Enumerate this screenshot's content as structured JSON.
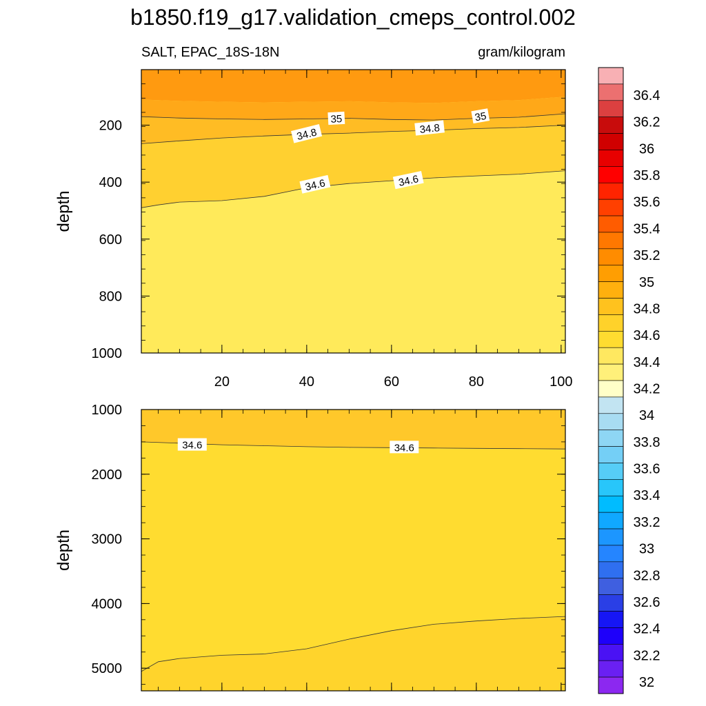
{
  "title": "b1850.f19_g17.validation_cmeps_control.002",
  "chart_data": {
    "type": "contour",
    "title": "b1850.f19_g17.validation_cmeps_control.002",
    "variable_label": "SALT, EPAC_18S-18N",
    "units_label": "gram/kilogram",
    "x_ticks": [
      20,
      40,
      60,
      80,
      100
    ],
    "xlim": [
      1,
      101
    ],
    "panels": [
      {
        "name": "upper",
        "ylabel": "depth",
        "ylim": [
          1000,
          5
        ],
        "y_ticks": [
          200,
          400,
          600,
          800,
          1000
        ],
        "fill_levels": [
          {
            "y": [
              5,
              120
            ],
            "value": 35.1
          },
          {
            "y": [
              120,
              200
            ],
            "value": 34.95
          },
          {
            "y": [
              200,
              300
            ],
            "value": 34.75
          },
          {
            "y": [
              300,
              400
            ],
            "value": 34.65
          },
          {
            "y": [
              400,
              1000
            ],
            "value": 34.5
          }
        ],
        "contours": [
          {
            "level": 35.0,
            "x": [
              1,
              10,
              20,
              30,
              40,
              50,
              60,
              70,
              80,
              90,
              101
            ],
            "y": [
              170,
              175,
              178,
              180,
              178,
              176,
              180,
              182,
              176,
              172,
              160
            ]
          },
          {
            "level": 34.8,
            "x": [
              1,
              10,
              20,
              30,
              40,
              50,
              60,
              70,
              80,
              90,
              101
            ],
            "y": [
              265,
              255,
              245,
              238,
              232,
              228,
              222,
              218,
              212,
              208,
              200
            ]
          },
          {
            "level": 34.6,
            "x": [
              1,
              5,
              10,
              20,
              30,
              40,
              50,
              60,
              70,
              80,
              90,
              101
            ],
            "y": [
              490,
              480,
              470,
              465,
              450,
              420,
              405,
              395,
              385,
              378,
              372,
              360
            ]
          }
        ],
        "contour_labels": [
          {
            "text": "35",
            "x": 47,
            "y": 178,
            "angle": -3
          },
          {
            "text": "35",
            "x": 81,
            "y": 170,
            "angle": -10
          },
          {
            "text": "34.8",
            "x": 40,
            "y": 232,
            "angle": -14
          },
          {
            "text": "34.8",
            "x": 69,
            "y": 212,
            "angle": -6
          },
          {
            "text": "34.6",
            "x": 42,
            "y": 410,
            "angle": -13
          },
          {
            "text": "34.6",
            "x": 64,
            "y": 395,
            "angle": -12
          }
        ]
      },
      {
        "name": "lower",
        "ylabel": "depth",
        "ylim": [
          5350,
          1000
        ],
        "y_ticks": [
          1000,
          2000,
          3000,
          4000,
          5000
        ],
        "fill_levels": [
          {
            "y": [
              1000,
              1550
            ],
            "value": 34.5
          },
          {
            "y": [
              1550,
              4250
            ],
            "value": 34.65
          },
          {
            "y": [
              4250,
              5350
            ],
            "value": 34.7
          }
        ],
        "contours": [
          {
            "level": 34.6,
            "x": [
              1,
              10,
              20,
              30,
              40,
              50,
              60,
              70,
              80,
              90,
              101
            ],
            "y": [
              1500,
              1520,
              1545,
              1560,
              1575,
              1585,
              1590,
              1595,
              1600,
              1605,
              1610
            ]
          },
          {
            "level": 34.7,
            "x": [
              1,
              5,
              10,
              20,
              30,
              40,
              50,
              60,
              70,
              80,
              90,
              101
            ],
            "y": [
              5050,
              4900,
              4850,
              4800,
              4780,
              4700,
              4550,
              4420,
              4320,
              4270,
              4230,
              4200
            ]
          }
        ],
        "contour_labels": [
          {
            "text": "34.6",
            "x": 13,
            "y": 1550,
            "angle": 0
          },
          {
            "text": "34.6",
            "x": 63,
            "y": 1590,
            "angle": 0
          }
        ]
      }
    ],
    "colorbar": {
      "labels": [
        "32",
        "32.2",
        "32.4",
        "32.6",
        "32.8",
        "33",
        "33.2",
        "33.4",
        "33.6",
        "33.8",
        "34",
        "34.2",
        "34.4",
        "34.6",
        "34.8",
        "35",
        "35.2",
        "35.4",
        "35.6",
        "35.8",
        "36",
        "36.2",
        "36.4"
      ],
      "colors": [
        "#8c28f0",
        "#6a20f2",
        "#4a12f4",
        "#1e00fa",
        "#1616f5",
        "#2a3fe6",
        "#3f5fe0",
        "#2f6ff0",
        "#2585ff",
        "#1c96ff",
        "#10a8ff",
        "#00bcff",
        "#28c6fa",
        "#56cdf7",
        "#74cff6",
        "#8ed6f4",
        "#a8dcf2",
        "#c2e4f2",
        "#ffffc8",
        "#fff07a",
        "#ffe860",
        "#ffdc30",
        "#ffd22a",
        "#ffc21e",
        "#ffb00e",
        "#ff9e02",
        "#ff8c00",
        "#ff7800",
        "#ff5c00",
        "#ff4000",
        "#ff2400",
        "#ff0000",
        "#e80000",
        "#d00000",
        "#c80c0c",
        "#dc4040",
        "#ec7070",
        "#f8b0b4"
      ]
    }
  }
}
